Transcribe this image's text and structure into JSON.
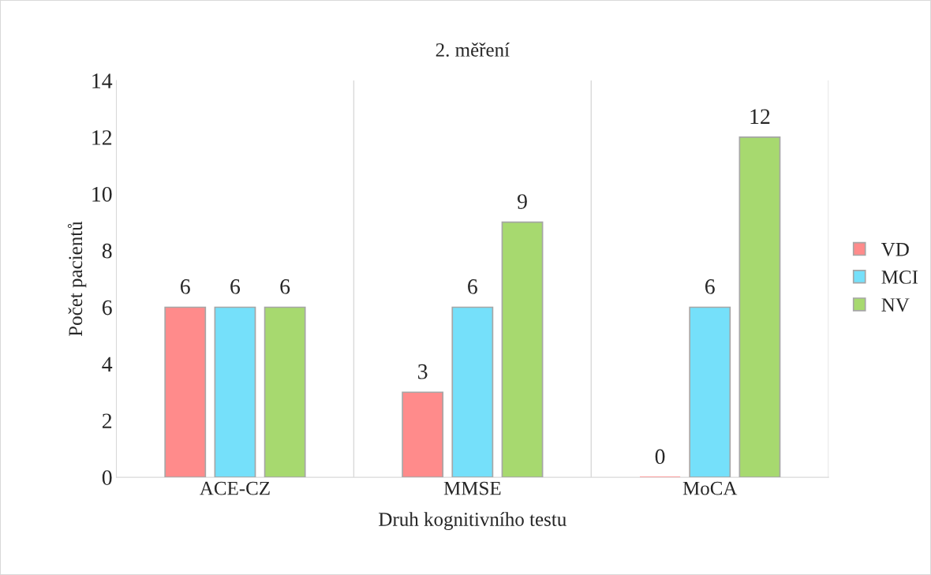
{
  "chart_data": {
    "type": "bar",
    "title": "2. měření",
    "xlabel": "Druh kognitivního testu",
    "ylabel": "Počet pacientů",
    "categories": [
      "ACE-CZ",
      "MMSE",
      "MoCA"
    ],
    "series": [
      {
        "name": "VD",
        "color": "#ff8b8b",
        "values": [
          6,
          3,
          0
        ]
      },
      {
        "name": "MCI",
        "color": "#75e0fa",
        "values": [
          6,
          6,
          6
        ]
      },
      {
        "name": "NV",
        "color": "#a7d96f",
        "values": [
          6,
          9,
          12
        ]
      }
    ],
    "ylim": [
      0,
      14
    ],
    "yticks": [
      0,
      2,
      4,
      6,
      8,
      10,
      12,
      14
    ],
    "grid": "x",
    "legend": "right",
    "data_labels": true
  }
}
